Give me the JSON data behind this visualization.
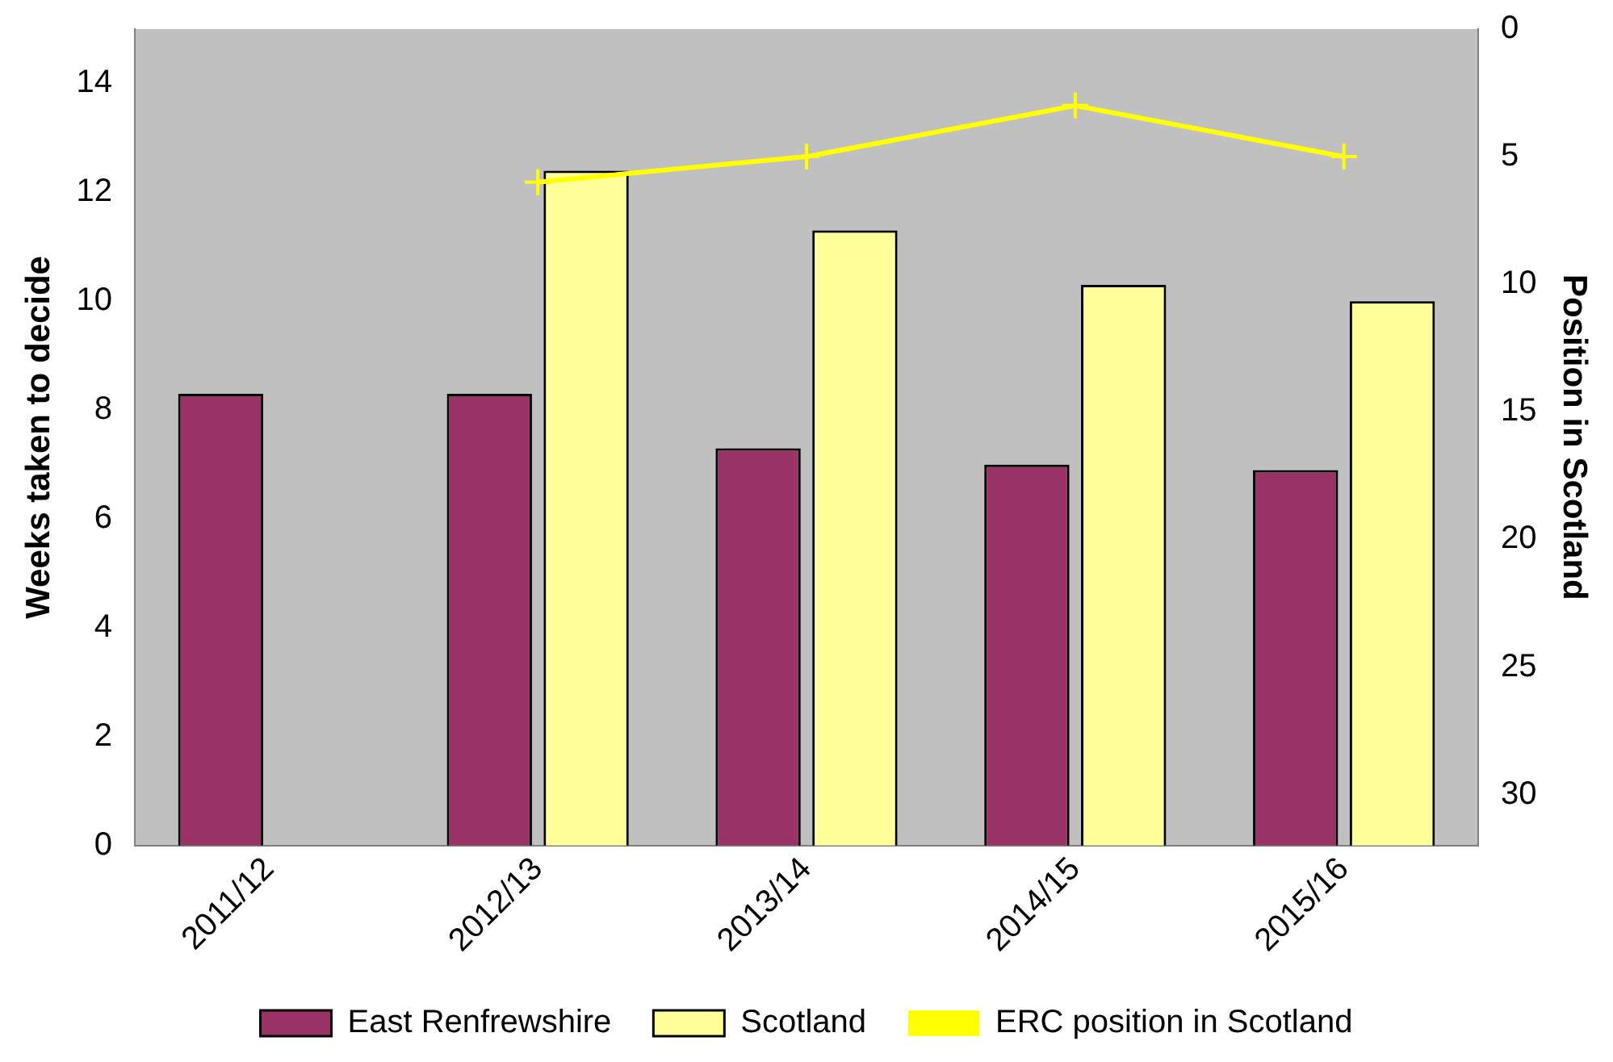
{
  "chart_data": {
    "type": "bar",
    "ylabel": "Weeks taken to decide",
    "y2label": "Position in Scotland",
    "categories": [
      "2011/12",
      "2012/13",
      "2013/14",
      "2014/15",
      "2015/16"
    ],
    "series": [
      {
        "name": "East Renfrewshire",
        "color": "#993366",
        "values": [
          8.3,
          8.3,
          7.3,
          7.0,
          6.9
        ]
      },
      {
        "name": "Scotland",
        "color": "#ffff99",
        "values": [
          null,
          12.4,
          11.3,
          10.3,
          10.0
        ]
      },
      {
        "name": "ERC position in Scotland",
        "type": "line",
        "axis": "y2",
        "color": "#ffff00",
        "marker": "cross",
        "values": [
          null,
          6,
          5,
          3,
          5
        ]
      }
    ],
    "ylim": [
      0,
      15
    ],
    "yticks": [
      0,
      2,
      4,
      6,
      8,
      10,
      12,
      14
    ],
    "y2lim": [
      32,
      0
    ],
    "y2ticks": [
      0,
      5,
      10,
      15,
      20,
      25,
      30
    ],
    "grid": false,
    "legend": "bottom"
  }
}
